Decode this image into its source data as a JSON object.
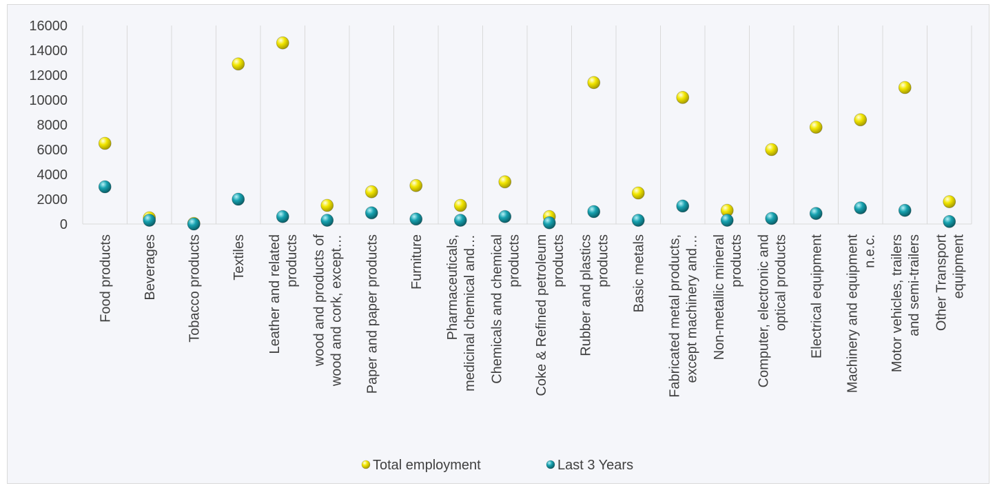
{
  "chart_data": {
    "type": "scatter",
    "title": "",
    "xlabel": "",
    "ylabel": "",
    "ylim": [
      0,
      16000
    ],
    "yticks": [
      0,
      2000,
      4000,
      6000,
      8000,
      10000,
      12000,
      14000,
      16000
    ],
    "grid": "vertical category dividers",
    "legend_position": "bottom",
    "categories": [
      [
        "Food products"
      ],
      [
        "Beverages"
      ],
      [
        "Tobacco products"
      ],
      [
        "Textiles"
      ],
      [
        "Leather and related",
        "products"
      ],
      [
        "wood and products of",
        "wood and cork, except…"
      ],
      [
        "Paper and paper products"
      ],
      [
        "Furniture"
      ],
      [
        "Pharmaceuticals,",
        "medicinal chemical and…"
      ],
      [
        "Chemicals and chemical",
        "products"
      ],
      [
        "Coke & Refined petroleum",
        "products"
      ],
      [
        "Rubber and plastics",
        "products"
      ],
      [
        "Basic metals"
      ],
      [
        "Fabricated metal products,",
        "except machinery and…"
      ],
      [
        "Non-metallic mineral",
        "products"
      ],
      [
        "Computer, electronic and",
        "optical products"
      ],
      [
        "Electrical equipment"
      ],
      [
        "Machinery and equipment",
        "n.e.c."
      ],
      [
        "Motor vehicles, trailers",
        "and semi-trailers"
      ],
      [
        "Other Transport",
        "equipment"
      ]
    ],
    "series": [
      {
        "name": "Total employment",
        "color": "#f2e600",
        "values": [
          6500,
          500,
          50,
          12900,
          14600,
          1500,
          2600,
          3100,
          1500,
          3400,
          600,
          11400,
          2500,
          10200,
          1100,
          6000,
          7800,
          8400,
          11000,
          1800
        ]
      },
      {
        "name": "Last 3 Years",
        "color": "#17a2b0",
        "values": [
          3000,
          300,
          0,
          2000,
          600,
          300,
          900,
          400,
          300,
          600,
          100,
          1000,
          300,
          1450,
          300,
          450,
          850,
          1300,
          1100,
          200
        ]
      }
    ]
  }
}
